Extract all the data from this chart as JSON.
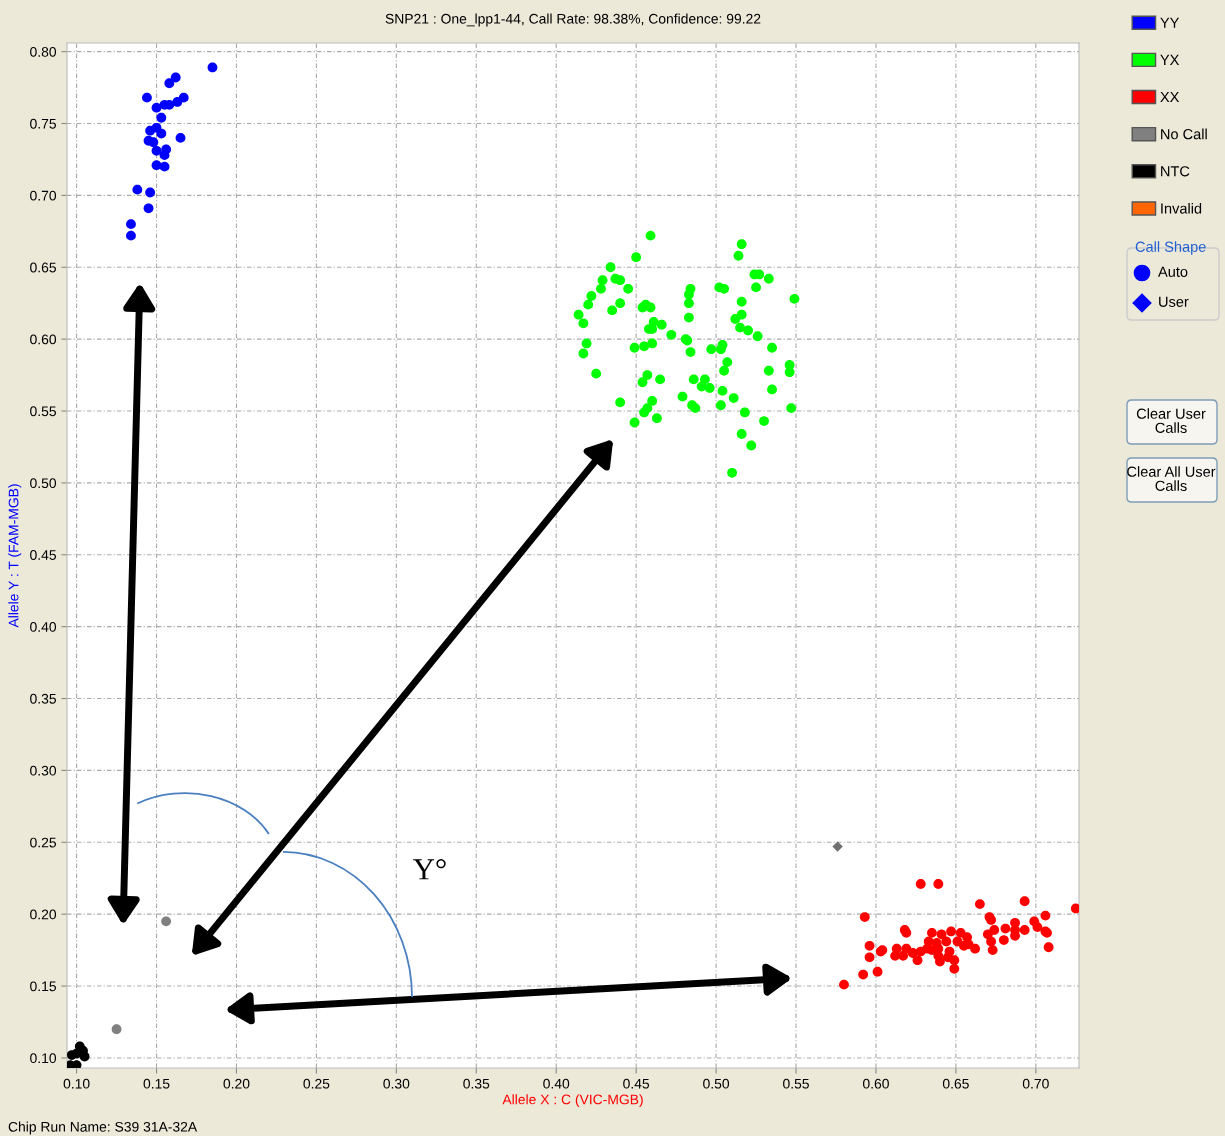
{
  "chart_data": {
    "type": "scatter",
    "title": "SNP21 : One_lpp1-44, Call Rate: 98.38%, Confidence: 99.22",
    "xlabel": "Allele X : C (VIC-MGB)",
    "ylabel": "Allele Y : T (FAM-MGB)",
    "xlim": [
      0.094,
      0.727
    ],
    "ylim": [
      0.093,
      0.806
    ],
    "xticks": [
      {
        "value": 0.1,
        "label": "0.10"
      },
      0.15,
      {
        "value": 0.2,
        "label": "0.20"
      },
      0.25,
      {
        "value": 0.3,
        "label": "0.30"
      },
      0.35,
      {
        "value": 0.4,
        "label": "0.40"
      },
      0.45,
      {
        "value": 0.5,
        "label": "0.50"
      },
      0.55,
      {
        "value": 0.6,
        "label": "0.60"
      },
      0.65,
      {
        "value": 0.7,
        "label": "0.70"
      }
    ],
    "yticks": [
      {
        "value": 0.1,
        "label": "0.10"
      },
      0.15,
      {
        "value": 0.2,
        "label": "0.20"
      },
      0.25,
      {
        "value": 0.3,
        "label": "0.30"
      },
      0.35,
      {
        "value": 0.4,
        "label": "0.40"
      },
      0.45,
      {
        "value": 0.5,
        "label": "0.50"
      },
      0.55,
      {
        "value": 0.6,
        "label": "0.60"
      },
      0.65,
      {
        "value": 0.7,
        "label": "0.70"
      },
      0.75,
      {
        "value": 0.8,
        "label": "0.80"
      }
    ],
    "grid": true,
    "legend": "right",
    "marker": "circle",
    "series": [
      {
        "name": "YY",
        "color": "#0000ff",
        "x": [
          0.185,
          0.162,
          0.158,
          0.144,
          0.167,
          0.15,
          0.155,
          0.158,
          0.163,
          0.153,
          0.146,
          0.15,
          0.153,
          0.165,
          0.145,
          0.148,
          0.15,
          0.156,
          0.155,
          0.15,
          0.155,
          0.138,
          0.146,
          0.145,
          0.134,
          0.134
        ],
        "values": [
          0.789,
          0.782,
          0.778,
          0.768,
          0.768,
          0.761,
          0.763,
          0.763,
          0.765,
          0.754,
          0.745,
          0.747,
          0.743,
          0.74,
          0.738,
          0.737,
          0.731,
          0.732,
          0.728,
          0.721,
          0.72,
          0.704,
          0.702,
          0.691,
          0.68,
          0.672
        ]
      },
      {
        "name": "YX",
        "color": "#00ff00",
        "x": [
          0.459,
          0.45,
          0.434,
          0.429,
          0.437,
          0.44,
          0.445,
          0.428,
          0.422,
          0.42,
          0.44,
          0.435,
          0.414,
          0.417,
          0.454,
          0.456,
          0.459,
          0.484,
          0.483,
          0.483,
          0.483,
          0.461,
          0.466,
          0.46,
          0.458,
          0.472,
          0.502,
          0.505,
          0.516,
          0.514,
          0.524,
          0.527,
          0.533,
          0.525,
          0.549,
          0.516,
          0.512,
          0.516,
          0.515,
          0.52,
          0.526,
          0.419,
          0.417,
          0.449,
          0.455,
          0.46,
          0.481,
          0.482,
          0.484,
          0.497,
          0.503,
          0.504,
          0.535,
          0.425,
          0.457,
          0.454,
          0.465,
          0.486,
          0.493,
          0.491,
          0.496,
          0.507,
          0.505,
          0.533,
          0.546,
          0.546,
          0.504,
          0.535,
          0.44,
          0.46,
          0.457,
          0.455,
          0.463,
          0.479,
          0.485,
          0.487,
          0.511,
          0.503,
          0.518,
          0.53,
          0.547,
          0.449,
          0.516,
          0.522,
          0.51
        ],
        "values": [
          0.672,
          0.657,
          0.65,
          0.641,
          0.642,
          0.641,
          0.635,
          0.635,
          0.63,
          0.624,
          0.625,
          0.62,
          0.617,
          0.611,
          0.622,
          0.624,
          0.622,
          0.635,
          0.631,
          0.625,
          0.615,
          0.612,
          0.61,
          0.607,
          0.607,
          0.603,
          0.636,
          0.635,
          0.666,
          0.658,
          0.645,
          0.645,
          0.642,
          0.636,
          0.628,
          0.626,
          0.614,
          0.617,
          0.608,
          0.606,
          0.602,
          0.597,
          0.59,
          0.594,
          0.595,
          0.597,
          0.6,
          0.599,
          0.591,
          0.593,
          0.593,
          0.596,
          0.594,
          0.576,
          0.575,
          0.57,
          0.572,
          0.572,
          0.572,
          0.567,
          0.566,
          0.584,
          0.578,
          0.578,
          0.582,
          0.577,
          0.564,
          0.565,
          0.556,
          0.557,
          0.552,
          0.549,
          0.545,
          0.56,
          0.554,
          0.552,
          0.559,
          0.554,
          0.549,
          0.543,
          0.552,
          0.542,
          0.534,
          0.526,
          0.507
        ]
      },
      {
        "name": "XX",
        "color": "#ff0000",
        "x": [
          0.628,
          0.639,
          0.593,
          0.665,
          0.693,
          0.725,
          0.671,
          0.672,
          0.706,
          0.699,
          0.701,
          0.706,
          0.707,
          0.693,
          0.687,
          0.681,
          0.687,
          0.687,
          0.674,
          0.67,
          0.672,
          0.68,
          0.673,
          0.708,
          0.618,
          0.619,
          0.635,
          0.641,
          0.647,
          0.653,
          0.657,
          0.651,
          0.655,
          0.658,
          0.662,
          0.644,
          0.633,
          0.638,
          0.632,
          0.635,
          0.639,
          0.639,
          0.64,
          0.646,
          0.645,
          0.649,
          0.649,
          0.596,
          0.596,
          0.603,
          0.604,
          0.613,
          0.619,
          0.623,
          0.628,
          0.626,
          0.612,
          0.617,
          0.592,
          0.601,
          0.58
        ],
        "values": [
          0.221,
          0.221,
          0.198,
          0.207,
          0.209,
          0.204,
          0.198,
          0.196,
          0.199,
          0.195,
          0.191,
          0.188,
          0.187,
          0.189,
          0.194,
          0.19,
          0.189,
          0.185,
          0.189,
          0.186,
          0.181,
          0.182,
          0.175,
          0.177,
          0.189,
          0.187,
          0.187,
          0.186,
          0.188,
          0.187,
          0.184,
          0.181,
          0.178,
          0.179,
          0.176,
          0.181,
          0.181,
          0.18,
          0.176,
          0.175,
          0.176,
          0.171,
          0.167,
          0.174,
          0.17,
          0.168,
          0.162,
          0.178,
          0.17,
          0.174,
          0.175,
          0.176,
          0.176,
          0.173,
          0.174,
          0.168,
          0.171,
          0.171,
          0.158,
          0.16,
          0.151
        ]
      },
      {
        "name": "No Call",
        "color": "#808080",
        "x": [
          0.156,
          0.125
        ],
        "values": [
          0.195,
          0.12
        ]
      },
      {
        "name": "NTC",
        "color": "#000000",
        "x": [
          0.102,
          0.104,
          0.097,
          0.1,
          0.105,
          0.096,
          0.1
        ],
        "values": [
          0.108,
          0.105,
          0.102,
          0.103,
          0.101,
          0.095,
          0.095
        ]
      },
      {
        "name": "Invalid",
        "color": "#ff6600"
      },
      {
        "color": "#707070",
        "marker": "diamond",
        "x": [
          0.576
        ],
        "values": [
          0.247
        ]
      }
    ],
    "annotations": [
      "Y°",
      "Call Shape",
      "Auto",
      "User",
      "Clear User Calls",
      "Clear All User Calls",
      "Chip Run Name: S39 31A-32A"
    ]
  }
}
